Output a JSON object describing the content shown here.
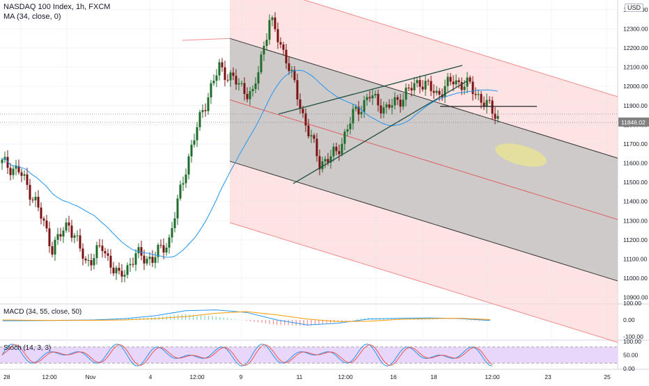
{
  "header": {
    "symbol_line": "NASDAQ 100 Index, 1h, FXCM",
    "ma_line": "MA (34, close, 0)",
    "currency": "USD"
  },
  "price_axis": {
    "ticks": [
      "12400.00",
      "12300.00",
      "12200.00",
      "12100.00",
      "12000.00",
      "11900.00",
      "11800.00",
      "11700.00",
      "11600.00",
      "11500.00",
      "11400.00",
      "11300.00",
      "11200.00",
      "11100.00",
      "11000.00",
      "10900.00"
    ],
    "last_price_label": "11846.02"
  },
  "time_axis": {
    "ticks": [
      "28",
      "12:00",
      "Nov",
      "4",
      "12:00",
      "9",
      "11",
      "12:00",
      "16",
      "18",
      "12:00",
      "23",
      "25"
    ]
  },
  "macd": {
    "label": "MACD (34, 55, close, 50)",
    "ticks": [
      "100.00",
      "0.00",
      "-100.00"
    ]
  },
  "stoch": {
    "label": "Stoch (14, 3, 3)",
    "ticks": [
      "100.00",
      "50.00",
      "0.00"
    ]
  },
  "colors": {
    "up": "#26a69a",
    "down": "#ef5350",
    "candle_up": "#1e6b2a",
    "candle_down": "#7a1212",
    "ma": "#2196f3",
    "channel_outer": "#f7a8a8",
    "channel_inner": "#b2b2b2",
    "stoch_band": "#e6d2fb"
  },
  "chart_data": [
    {
      "type": "candlestick",
      "title": "NASDAQ 100 Index, 1h, FXCM",
      "ylim": [
        10870,
        12450
      ],
      "x_ticks": [
        "28",
        "12:00",
        "Nov",
        "4",
        "12:00",
        "9",
        "11",
        "12:00",
        "16",
        "18",
        "12:00",
        "23",
        "25"
      ],
      "close_path": [
        {
          "x": 0,
          "y": 11600
        },
        {
          "x": 6,
          "y": 11560
        },
        {
          "x": 12,
          "y": 11400
        },
        {
          "x": 18,
          "y": 11160
        },
        {
          "x": 24,
          "y": 11290
        },
        {
          "x": 30,
          "y": 11080
        },
        {
          "x": 36,
          "y": 11160
        },
        {
          "x": 42,
          "y": 11000
        },
        {
          "x": 48,
          "y": 11120
        },
        {
          "x": 54,
          "y": 11100
        },
        {
          "x": 60,
          "y": 11200
        },
        {
          "x": 66,
          "y": 11580
        },
        {
          "x": 72,
          "y": 11880
        },
        {
          "x": 78,
          "y": 12100
        },
        {
          "x": 84,
          "y": 12020
        },
        {
          "x": 90,
          "y": 11950
        },
        {
          "x": 96,
          "y": 12350
        },
        {
          "x": 102,
          "y": 12150
        },
        {
          "x": 108,
          "y": 11850
        },
        {
          "x": 114,
          "y": 11600
        },
        {
          "x": 120,
          "y": 11650
        },
        {
          "x": 126,
          "y": 11850
        },
        {
          "x": 132,
          "y": 11950
        },
        {
          "x": 138,
          "y": 11880
        },
        {
          "x": 144,
          "y": 11950
        },
        {
          "x": 150,
          "y": 12030
        },
        {
          "x": 156,
          "y": 11960
        },
        {
          "x": 162,
          "y": 12030
        },
        {
          "x": 168,
          "y": 12000
        },
        {
          "x": 174,
          "y": 11900
        },
        {
          "x": 178,
          "y": 11846
        }
      ],
      "last_close": 11846.02,
      "moving_average": {
        "name": "MA (34, close, 0)",
        "period": 34
      }
    },
    {
      "type": "line",
      "title": "MACD (34, 55, close, 50)",
      "ylim": [
        -100,
        100
      ],
      "series": [
        {
          "name": "macd",
          "values": [
            -5,
            -4,
            -2,
            0,
            8,
            25,
            55,
            60,
            45,
            0,
            -30,
            -20,
            5,
            10,
            12,
            8,
            -3
          ]
        },
        {
          "name": "signal",
          "values": [
            0,
            -2,
            -3,
            -2,
            0,
            8,
            20,
            40,
            50,
            30,
            5,
            -10,
            -8,
            3,
            8,
            10,
            2
          ]
        }
      ]
    },
    {
      "type": "line",
      "title": "Stoch (14, 3, 3)",
      "ylim": [
        0,
        100
      ],
      "bands": [
        80,
        20
      ]
    }
  ]
}
